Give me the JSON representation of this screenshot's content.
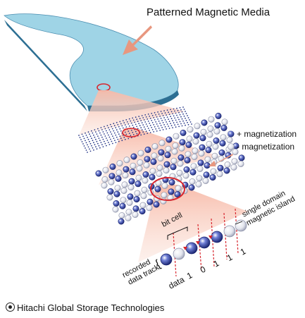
{
  "title": "Patterned Magnetic Media",
  "legend": {
    "positive": "+ magnetization",
    "negative": "- magnetization"
  },
  "labels": {
    "bit_cell": "bit cell",
    "island_line1": "single domain",
    "island_line2": "magnetic island",
    "track_line1": "recorded",
    "track_line2": "data track",
    "data_label": "data"
  },
  "data_bits": [
    "1",
    "0",
    "1",
    "1",
    "1"
  ],
  "footer": "Hitachi Global Storage Technologies",
  "colors": {
    "disk": "#9fd4e6",
    "disk_edge": "#2d6f93",
    "beam": "#f6c7b8",
    "positive": "#1f2f8f",
    "negative": "#d9dbe6",
    "highlight": "#d8262e",
    "track_line": "#d8262e"
  }
}
